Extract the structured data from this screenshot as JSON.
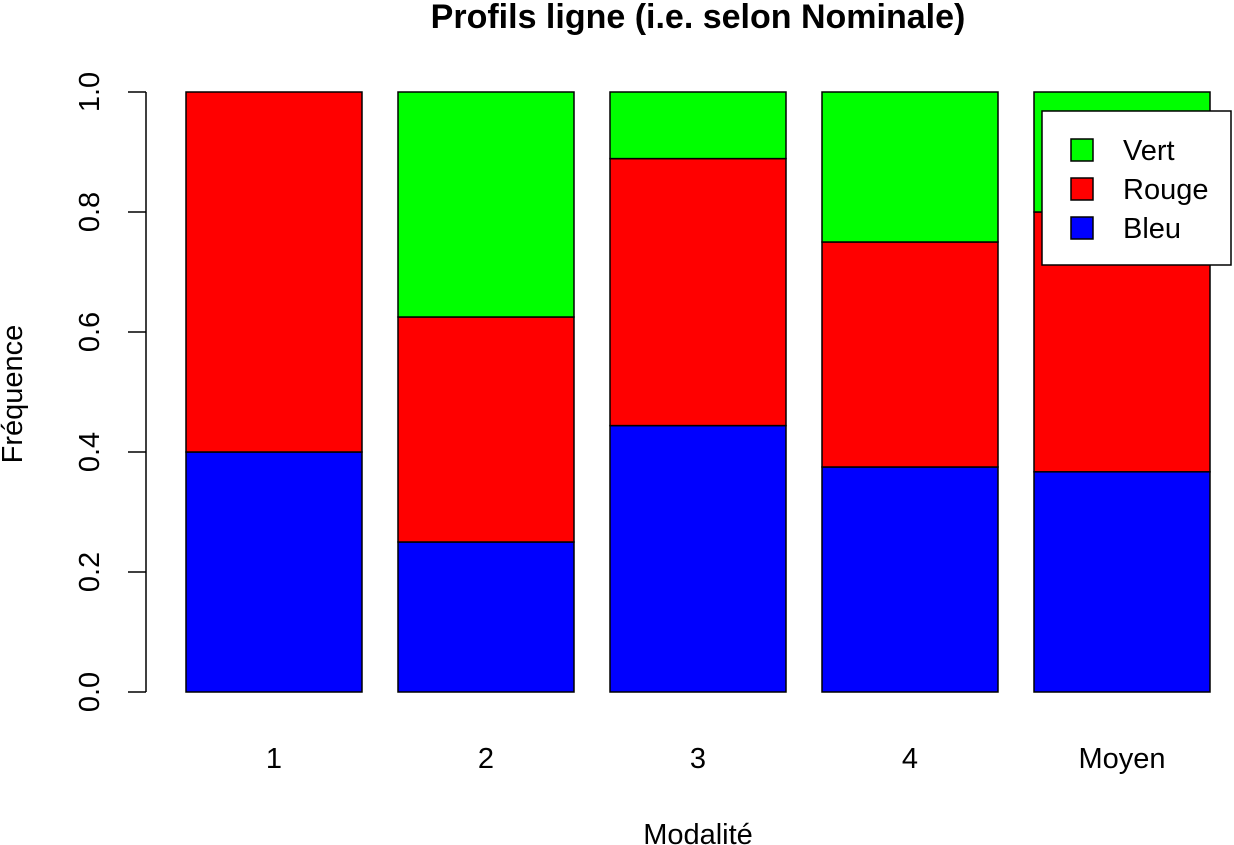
{
  "chart_data": {
    "type": "bar",
    "stacked": true,
    "title": "Profils ligne (i.e. selon Nominale)",
    "xlabel": "Modalité",
    "ylabel": "Fréquence",
    "ylim": [
      0,
      1
    ],
    "yticks": [
      "0.0",
      "0.2",
      "0.4",
      "0.6",
      "0.8",
      "1.0"
    ],
    "grid": false,
    "legend_position": "top-right",
    "categories": [
      "1",
      "2",
      "3",
      "4",
      "Moyen"
    ],
    "series": [
      {
        "name": "Bleu",
        "color": "#0000ff",
        "values": [
          0.4,
          0.25,
          0.444,
          0.375,
          0.367
        ]
      },
      {
        "name": "Rouge",
        "color": "#ff0000",
        "values": [
          0.6,
          0.375,
          0.445,
          0.375,
          0.433
        ]
      },
      {
        "name": "Vert",
        "color": "#00ff00",
        "values": [
          0.0,
          0.375,
          0.111,
          0.25,
          0.2
        ]
      }
    ],
    "legend_order": [
      "Vert",
      "Rouge",
      "Bleu"
    ]
  }
}
